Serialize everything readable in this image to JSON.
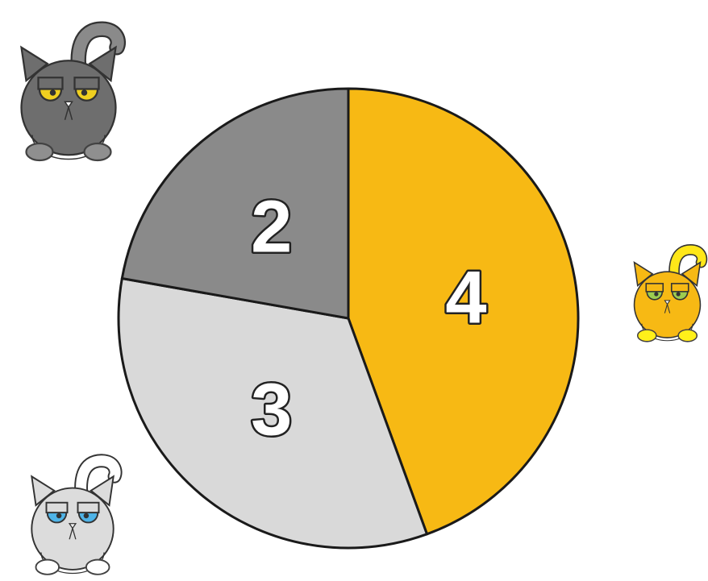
{
  "chart_data": {
    "type": "pie",
    "values": [
      4,
      3,
      2
    ],
    "colors": [
      "#f7b914",
      "#d9d9d9",
      "#8a8a8a"
    ]
  }
}
